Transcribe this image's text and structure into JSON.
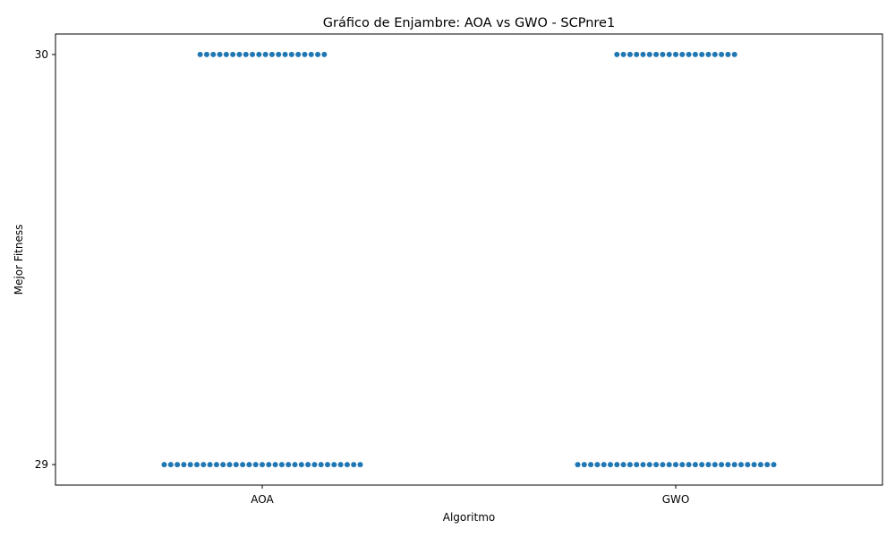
{
  "chart_data": {
    "type": "scatter",
    "subtype": "swarm",
    "title": "Gráfico de Enjambre: AOA vs GWO - SCPnre1",
    "xlabel": "Algoritmo",
    "ylabel": "Mejor Fitness",
    "categories": [
      "AOA",
      "GWO"
    ],
    "y_ticks": [
      "29",
      "30"
    ],
    "ylim": [
      28.95,
      30.05
    ],
    "color": "#1f77b4",
    "grid": false,
    "series": [
      {
        "category": "AOA",
        "counts": [
          {
            "y": 30,
            "n": 20
          },
          {
            "y": 29,
            "n": 31
          }
        ]
      },
      {
        "category": "GWO",
        "counts": [
          {
            "y": 30,
            "n": 19
          },
          {
            "y": 29,
            "n": 31
          }
        ]
      }
    ]
  }
}
